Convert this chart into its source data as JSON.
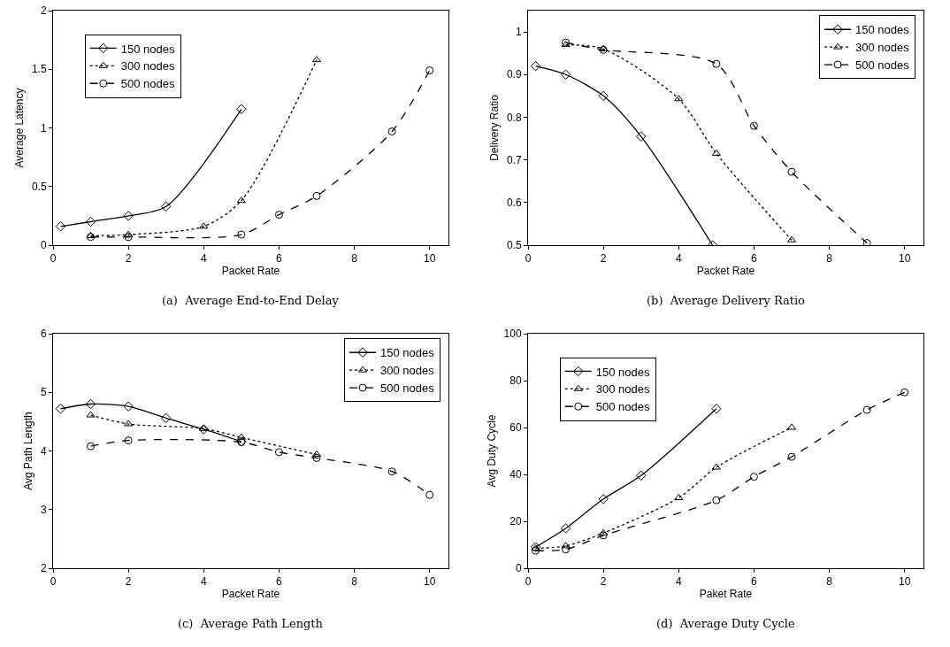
{
  "chart_data": [
    {
      "type": "line",
      "xlabel": "Packet Rate",
      "ylabel": "Average Latency",
      "xlim": [
        0,
        10.5
      ],
      "xticks": [
        0,
        2,
        4,
        6,
        8,
        10
      ],
      "ylim": [
        0,
        2
      ],
      "yticks": [
        0,
        0.5,
        1,
        1.5,
        2
      ],
      "grid": false,
      "legend": "top left",
      "annotations": [
        "(a)  Average End-to-End Delay"
      ],
      "series": [
        {
          "name": "150 nodes",
          "color": "#000000",
          "marker": "diamond",
          "line_style": "solid",
          "x": [
            0.2,
            1,
            2,
            3,
            5
          ],
          "values": [
            0.16,
            0.2,
            0.25,
            0.33,
            1.16
          ]
        },
        {
          "name": "300 nodes",
          "color": "#000000",
          "marker": "triangle",
          "line_style": "dotted",
          "x": [
            1,
            2,
            4,
            5,
            7
          ],
          "values": [
            0.08,
            0.09,
            0.16,
            0.38,
            1.58
          ]
        },
        {
          "name": "500 nodes",
          "color": "#000000",
          "marker": "circle",
          "line_style": "dashed",
          "x": [
            1,
            2,
            5,
            6,
            7,
            9,
            10
          ],
          "values": [
            0.07,
            0.07,
            0.09,
            0.26,
            0.42,
            0.97,
            1.49
          ]
        }
      ]
    },
    {
      "type": "line",
      "xlabel": "Packet Rate",
      "ylabel": "Delivery Ratio",
      "xlim": [
        0,
        10.5
      ],
      "xticks": [
        0,
        2,
        4,
        6,
        8,
        10
      ],
      "ylim": [
        0.5,
        1.05
      ],
      "yticks": [
        0.5,
        0.6,
        0.7,
        0.8,
        0.9,
        1
      ],
      "grid": false,
      "legend": "top right",
      "annotations": [
        "(b)  Average Delivery Ratio"
      ],
      "series": [
        {
          "name": "150 nodes",
          "color": "#000000",
          "marker": "diamond",
          "line_style": "solid",
          "x": [
            0.2,
            1,
            2,
            3,
            4.9
          ],
          "values": [
            0.92,
            0.9,
            0.85,
            0.755,
            0.5
          ]
        },
        {
          "name": "300 nodes",
          "color": "#000000",
          "marker": "triangle",
          "line_style": "dotted",
          "x": [
            1,
            2,
            4,
            5,
            7
          ],
          "values": [
            0.97,
            0.96,
            0.843,
            0.715,
            0.512
          ]
        },
        {
          "name": "500 nodes",
          "color": "#000000",
          "marker": "circle",
          "line_style": "dashed",
          "x": [
            1,
            2,
            5,
            6,
            7,
            9
          ],
          "values": [
            0.975,
            0.958,
            0.925,
            0.78,
            0.672,
            0.505
          ]
        }
      ]
    },
    {
      "type": "line",
      "xlabel": "Packet Rate",
      "ylabel": "Avg Path Length",
      "xlim": [
        0,
        10.5
      ],
      "xticks": [
        0,
        2,
        4,
        6,
        8,
        10
      ],
      "ylim": [
        2,
        6
      ],
      "yticks": [
        2,
        3,
        4,
        5,
        6
      ],
      "grid": false,
      "legend": "top right",
      "annotations": [
        "(c)  Average Path Length"
      ],
      "series": [
        {
          "name": "150 nodes",
          "color": "#000000",
          "marker": "diamond",
          "line_style": "solid",
          "x": [
            0.2,
            1,
            2,
            3,
            4,
            5
          ],
          "values": [
            4.72,
            4.8,
            4.76,
            4.56,
            4.37,
            4.16
          ]
        },
        {
          "name": "300 nodes",
          "color": "#000000",
          "marker": "triangle",
          "line_style": "dotted",
          "x": [
            1,
            2,
            4,
            5,
            7
          ],
          "values": [
            4.61,
            4.46,
            4.38,
            4.23,
            3.94
          ]
        },
        {
          "name": "500 nodes",
          "color": "#000000",
          "marker": "circle",
          "line_style": "dashed",
          "x": [
            1,
            2,
            5,
            6,
            7,
            9,
            10
          ],
          "values": [
            4.08,
            4.18,
            4.15,
            3.98,
            3.88,
            3.65,
            3.25
          ]
        }
      ]
    },
    {
      "type": "line",
      "xlabel": "Paket Rate",
      "ylabel": "Avg Duty Cycle",
      "xlim": [
        0,
        10.5
      ],
      "xticks": [
        0,
        2,
        4,
        6,
        8,
        10
      ],
      "ylim": [
        0,
        100
      ],
      "yticks": [
        0,
        20,
        40,
        60,
        80,
        100
      ],
      "grid": false,
      "legend": "top left",
      "annotations": [
        "(d)  Average Duty Cycle"
      ],
      "series": [
        {
          "name": "150 nodes",
          "color": "#000000",
          "marker": "diamond",
          "line_style": "solid",
          "x": [
            0.2,
            1,
            2,
            3,
            5
          ],
          "values": [
            9,
            17,
            29.5,
            39.5,
            68
          ]
        },
        {
          "name": "300 nodes",
          "color": "#000000",
          "marker": "triangle",
          "line_style": "dotted",
          "x": [
            0.2,
            1,
            2,
            4,
            5,
            7
          ],
          "values": [
            8.5,
            9.5,
            15,
            30,
            43,
            60
          ]
        },
        {
          "name": "500 nodes",
          "color": "#000000",
          "marker": "circle",
          "line_style": "dashed",
          "x": [
            0.2,
            1,
            2,
            5,
            6,
            7,
            9,
            10
          ],
          "values": [
            7.5,
            8,
            14,
            29,
            39,
            47.5,
            67.5,
            75
          ]
        }
      ]
    }
  ]
}
